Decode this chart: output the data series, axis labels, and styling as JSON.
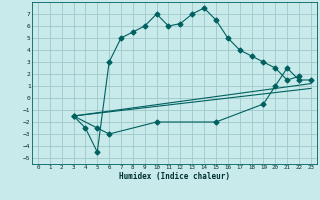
{
  "xlabel": "Humidex (Indice chaleur)",
  "ylabel": "",
  "background_color": "#c8eaea",
  "grid_color": "#a0c8c8",
  "line_color": "#006060",
  "xlim": [
    -0.5,
    23.5
  ],
  "ylim": [
    -5.5,
    8
  ],
  "xticks": [
    0,
    1,
    2,
    3,
    4,
    5,
    6,
    7,
    8,
    9,
    10,
    11,
    12,
    13,
    14,
    15,
    16,
    17,
    18,
    19,
    20,
    21,
    22,
    23
  ],
  "yticks": [
    -5,
    -4,
    -3,
    -2,
    -1,
    0,
    1,
    2,
    3,
    4,
    5,
    6,
    7
  ],
  "line1_x": [
    3,
    4,
    5,
    6,
    7,
    8,
    9,
    10,
    11,
    12,
    13,
    14,
    15,
    16,
    17,
    18,
    19,
    20,
    21,
    22
  ],
  "line1_y": [
    -1.5,
    -2.5,
    -4.5,
    3,
    5,
    5.5,
    6,
    7,
    6,
    6.2,
    7,
    7.5,
    6.5,
    5,
    4,
    3.5,
    3,
    2.5,
    1.5,
    1.8
  ],
  "line2_x": [
    3,
    5,
    6,
    10,
    15,
    19,
    20,
    21,
    22,
    23
  ],
  "line2_y": [
    -1.5,
    -2.5,
    -3,
    -2,
    -2,
    -0.5,
    1,
    2.5,
    1.5,
    1.5
  ],
  "line3_x": [
    3,
    23
  ],
  "line3_y": [
    -1.5,
    1.2
  ],
  "line4_x": [
    3,
    23
  ],
  "line4_y": [
    -1.5,
    0.8
  ]
}
